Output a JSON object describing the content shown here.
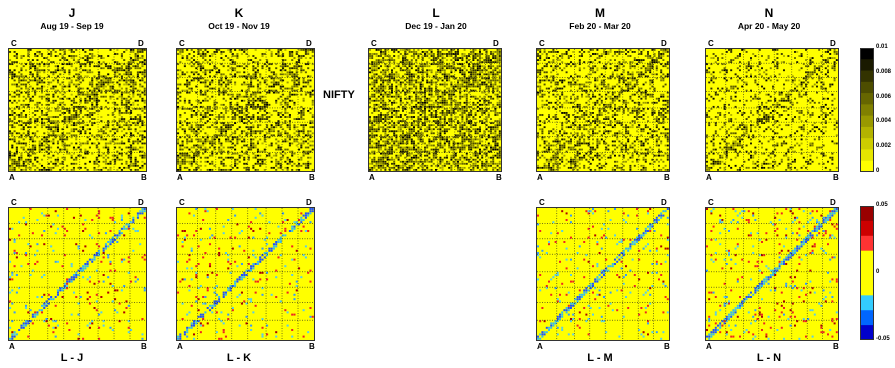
{
  "market_label": "NIFTY",
  "corners": {
    "top_left": "C",
    "top_right": "D",
    "bottom_left": "A",
    "bottom_right": "B"
  },
  "colors": {
    "background_yellow": "#ffff00",
    "grid_dotted": "#222222"
  },
  "chart_data": [
    {
      "type": "heatmap",
      "id": "J",
      "title": "J",
      "subtitle": "Aug 19 - Sep 19",
      "row": "top",
      "colorscale": "correlation",
      "clim": [
        0,
        0.01
      ],
      "density": 0.34,
      "block_strength": 0.22,
      "diag_strength": 0.12
    },
    {
      "type": "heatmap",
      "id": "K",
      "title": "K",
      "subtitle": "Oct 19 - Nov 19",
      "row": "top",
      "colorscale": "correlation",
      "clim": [
        0,
        0.01
      ],
      "density": 0.34,
      "block_strength": 0.22,
      "diag_strength": 0.12
    },
    {
      "type": "heatmap",
      "id": "L",
      "title": "L",
      "subtitle": "Dec 19 - Jan 20",
      "row": "top",
      "colorscale": "correlation",
      "clim": [
        0,
        0.01
      ],
      "density": 0.55,
      "block_strength": 0.12,
      "diag_strength": 0.15
    },
    {
      "type": "heatmap",
      "id": "M",
      "title": "M",
      "subtitle": "Feb 20 - Mar 20",
      "row": "top",
      "colorscale": "correlation",
      "clim": [
        0,
        0.01
      ],
      "density": 0.3,
      "block_strength": 0.15,
      "diag_strength": 0.25
    },
    {
      "type": "heatmap",
      "id": "N",
      "title": "N",
      "subtitle": "Apr 20 - May 20",
      "row": "top",
      "colorscale": "correlation",
      "clim": [
        0,
        0.01
      ],
      "density": 0.14,
      "block_strength": 0.25,
      "diag_strength": 0.3
    },
    {
      "type": "heatmap",
      "id": "LJ",
      "title": "L - J",
      "row": "bottom",
      "colorscale": "difference",
      "clim": [
        -0.05,
        0.05
      ],
      "density": 0.05,
      "diag_strength": 0.7
    },
    {
      "type": "heatmap",
      "id": "LK",
      "title": "L - K",
      "row": "bottom",
      "colorscale": "difference",
      "clim": [
        -0.05,
        0.05
      ],
      "density": 0.05,
      "diag_strength": 0.65
    },
    {
      "type": "heatmap",
      "id": "LM",
      "title": "L - M",
      "row": "bottom",
      "colorscale": "difference",
      "clim": [
        -0.05,
        0.05
      ],
      "density": 0.04,
      "diag_strength": 0.8
    },
    {
      "type": "heatmap",
      "id": "LN",
      "title": "L - N",
      "row": "bottom",
      "colorscale": "difference",
      "clim": [
        -0.05,
        0.05
      ],
      "density": 0.06,
      "diag_strength": 0.85
    }
  ],
  "colorbars": [
    {
      "id": "correlation",
      "ticks": [
        "0.01",
        "0.008",
        "0.006",
        "0.004",
        "0.002",
        "0"
      ],
      "colors": [
        "#000000",
        "#1a1a00",
        "#333300",
        "#4d4d00",
        "#666600",
        "#808000",
        "#999900",
        "#b3b300",
        "#cccc00",
        "#e6e600",
        "#ffff00"
      ]
    },
    {
      "id": "difference",
      "ticks": [
        "0.05",
        "0",
        "-0.05"
      ],
      "colors": [
        "#990000",
        "#cc0000",
        "#ff3333",
        "#ffff00",
        "#ffff00",
        "#ffff00",
        "#33ccff",
        "#0066ff",
        "#0000cc"
      ]
    }
  ]
}
